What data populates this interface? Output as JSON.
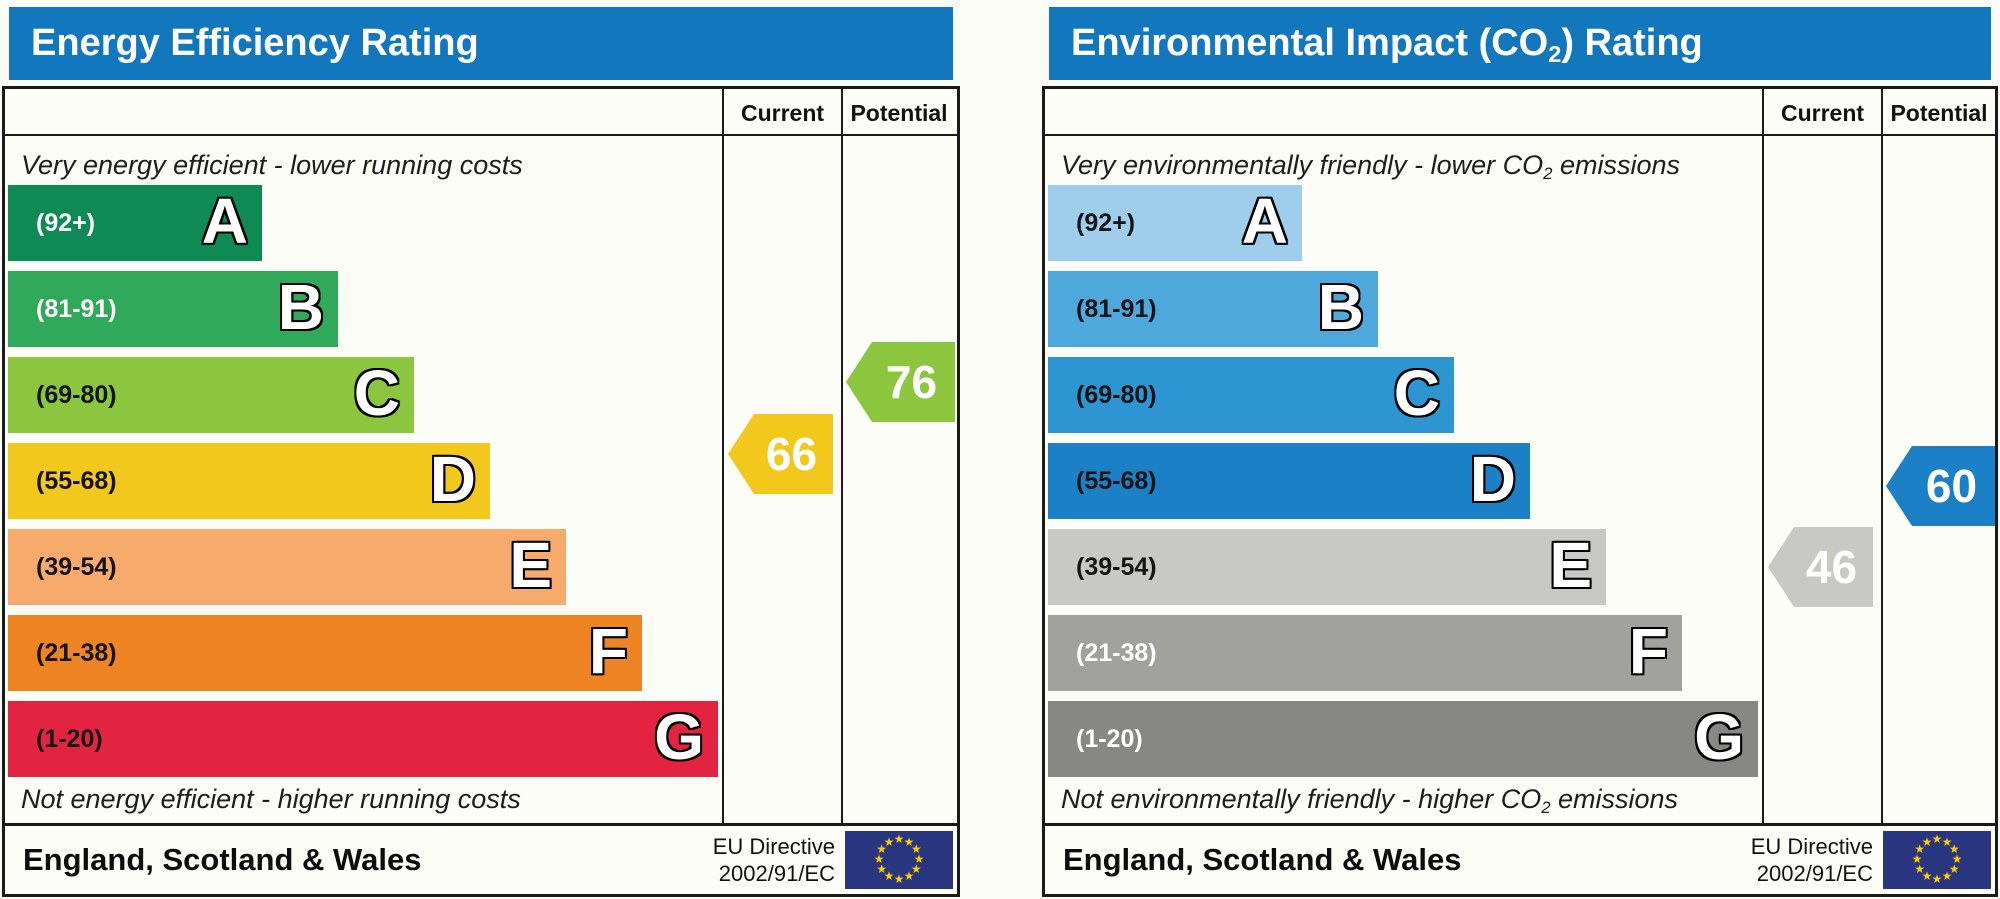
{
  "colors": {
    "title_bar": "#1377bd",
    "border": "#1a1a1a",
    "cell_background": "#fdfdf8",
    "page_background": "#fcfcf6",
    "eu_flag_blue": "#29357f",
    "eu_star_yellow": "#ffcc00",
    "arrow_text": "#ffffff"
  },
  "chart_data": [
    {
      "type": "bar",
      "id": "energy-efficiency",
      "title": "Energy Efficiency Rating",
      "title_parts": {
        "pre": "Energy Efficiency Rating",
        "sub": "",
        "post": ""
      },
      "columns": {
        "current": "Current",
        "potential": "Potential"
      },
      "caption_top_parts": {
        "pre": "Very energy efficient - lower running costs",
        "sub": "",
        "post": ""
      },
      "caption_bottom_parts": {
        "pre": "Not energy efficient - higher running costs",
        "sub": "",
        "post": ""
      },
      "bands": [
        {
          "letter": "A",
          "range": "(92+)",
          "min": 92,
          "max": 100,
          "color": "#0f8a55",
          "label_color": "#ffffff"
        },
        {
          "letter": "B",
          "range": "(81-91)",
          "min": 81,
          "max": 91,
          "color": "#31a95a",
          "label_color": "#ffffff"
        },
        {
          "letter": "C",
          "range": "(69-80)",
          "min": 69,
          "max": 80,
          "color": "#8cc63f",
          "label_color": "#141414"
        },
        {
          "letter": "D",
          "range": "(55-68)",
          "min": 55,
          "max": 68,
          "color": "#f3c81d",
          "label_color": "#141414"
        },
        {
          "letter": "E",
          "range": "(39-54)",
          "min": 39,
          "max": 54,
          "color": "#f6ab6c",
          "label_color": "#141414"
        },
        {
          "letter": "F",
          "range": "(21-38)",
          "min": 21,
          "max": 38,
          "color": "#ee8423",
          "label_color": "#141414"
        },
        {
          "letter": "G",
          "range": "(1-20)",
          "min": 1,
          "max": 20,
          "color": "#e32441",
          "label_color": "#141414"
        }
      ],
      "values": {
        "current": 66,
        "potential": 76
      },
      "footer": {
        "region": "England, Scotland & Wales",
        "directive_line1": "EU Directive",
        "directive_line2": "2002/91/EC"
      }
    },
    {
      "type": "bar",
      "id": "environmental-impact-co2",
      "title": "Environmental Impact (CO2) Rating",
      "title_parts": {
        "pre": "Environmental Impact (CO",
        "sub": "2",
        "post": ") Rating"
      },
      "columns": {
        "current": "Current",
        "potential": "Potential"
      },
      "caption_top_parts": {
        "pre": "Very environmentally friendly - lower CO",
        "sub": "2",
        "post": " emissions"
      },
      "caption_bottom_parts": {
        "pre": "Not environmentally friendly - higher CO",
        "sub": "2",
        "post": " emissions"
      },
      "bands": [
        {
          "letter": "A",
          "range": "(92+)",
          "min": 92,
          "max": 100,
          "color": "#9fceec",
          "label_color": "#141414"
        },
        {
          "letter": "B",
          "range": "(81-91)",
          "min": 81,
          "max": 91,
          "color": "#4fa8dc",
          "label_color": "#141414"
        },
        {
          "letter": "C",
          "range": "(69-80)",
          "min": 69,
          "max": 80,
          "color": "#2c95d2",
          "label_color": "#141414"
        },
        {
          "letter": "D",
          "range": "(55-68)",
          "min": 55,
          "max": 68,
          "color": "#1b80c5",
          "label_color": "#141414"
        },
        {
          "letter": "E",
          "range": "(39-54)",
          "min": 39,
          "max": 54,
          "color": "#c8c8c5",
          "label_color": "#141414"
        },
        {
          "letter": "F",
          "range": "(21-38)",
          "min": 21,
          "max": 38,
          "color": "#a1a19e",
          "label_color": "#ffffff"
        },
        {
          "letter": "G",
          "range": "(1-20)",
          "min": 1,
          "max": 20,
          "color": "#878784",
          "label_color": "#ffffff"
        }
      ],
      "values": {
        "current": 46,
        "potential": 60
      },
      "footer": {
        "region": "England, Scotland & Wales",
        "directive_line1": "EU Directive",
        "directive_line2": "2002/91/EC"
      }
    }
  ]
}
